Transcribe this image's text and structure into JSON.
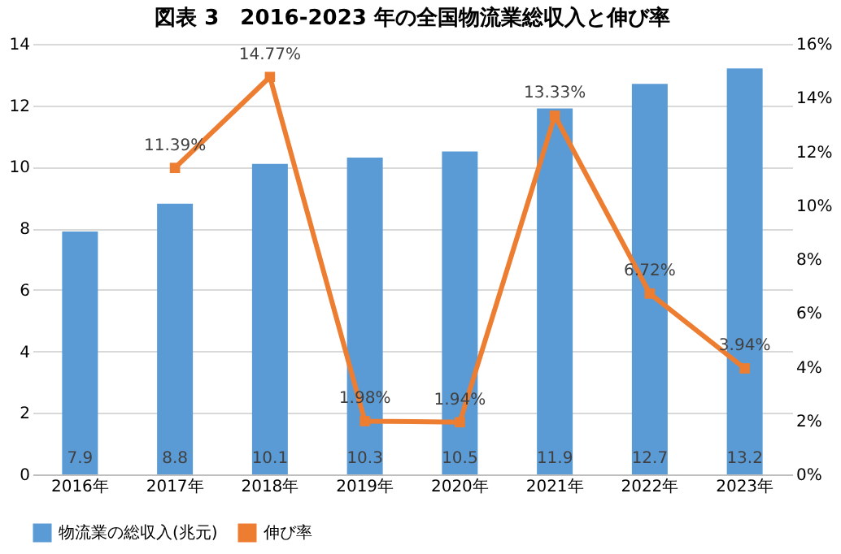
{
  "chart_data": {
    "type": "bar",
    "title": "図表 3　2016-2023 年の全国物流業総収入と伸び率",
    "categories": [
      "2016年",
      "2017年",
      "2018年",
      "2019年",
      "2020年",
      "2021年",
      "2022年",
      "2023年"
    ],
    "series": [
      {
        "name": "物流業の総収入(兆元)",
        "color": "#5b9bd5",
        "values": [
          7.9,
          8.8,
          10.1,
          10.3,
          10.5,
          11.9,
          12.7,
          13.2
        ]
      },
      {
        "name": "伸び率",
        "type": "line",
        "axis": "y2",
        "color": "#ed7d31",
        "marker": "square",
        "values": [
          null,
          11.39,
          14.77,
          1.98,
          1.94,
          13.33,
          6.72,
          3.94
        ],
        "value_labels": [
          null,
          "11.39%",
          "14.77%",
          "1.98%",
          "1.94%",
          "13.33%",
          "6.72%",
          "3.94%"
        ]
      }
    ],
    "data_labels": true,
    "ylim": [
      0,
      14
    ],
    "yticks": [
      0,
      2,
      4,
      6,
      8,
      10,
      12,
      14
    ],
    "y2lim": [
      0,
      16
    ],
    "y2ticks": [
      {
        "value": 0,
        "label": "0%"
      },
      {
        "value": 2,
        "label": "2%"
      },
      {
        "value": 4,
        "label": "4%"
      },
      {
        "value": 6,
        "label": "6%"
      },
      {
        "value": 8,
        "label": "8%"
      },
      {
        "value": 10,
        "label": "10%"
      },
      {
        "value": 12,
        "label": "12%"
      },
      {
        "value": 14,
        "label": "14%"
      },
      {
        "value": 16,
        "label": "16%"
      }
    ],
    "grid": "y",
    "legend": "bottom"
  }
}
